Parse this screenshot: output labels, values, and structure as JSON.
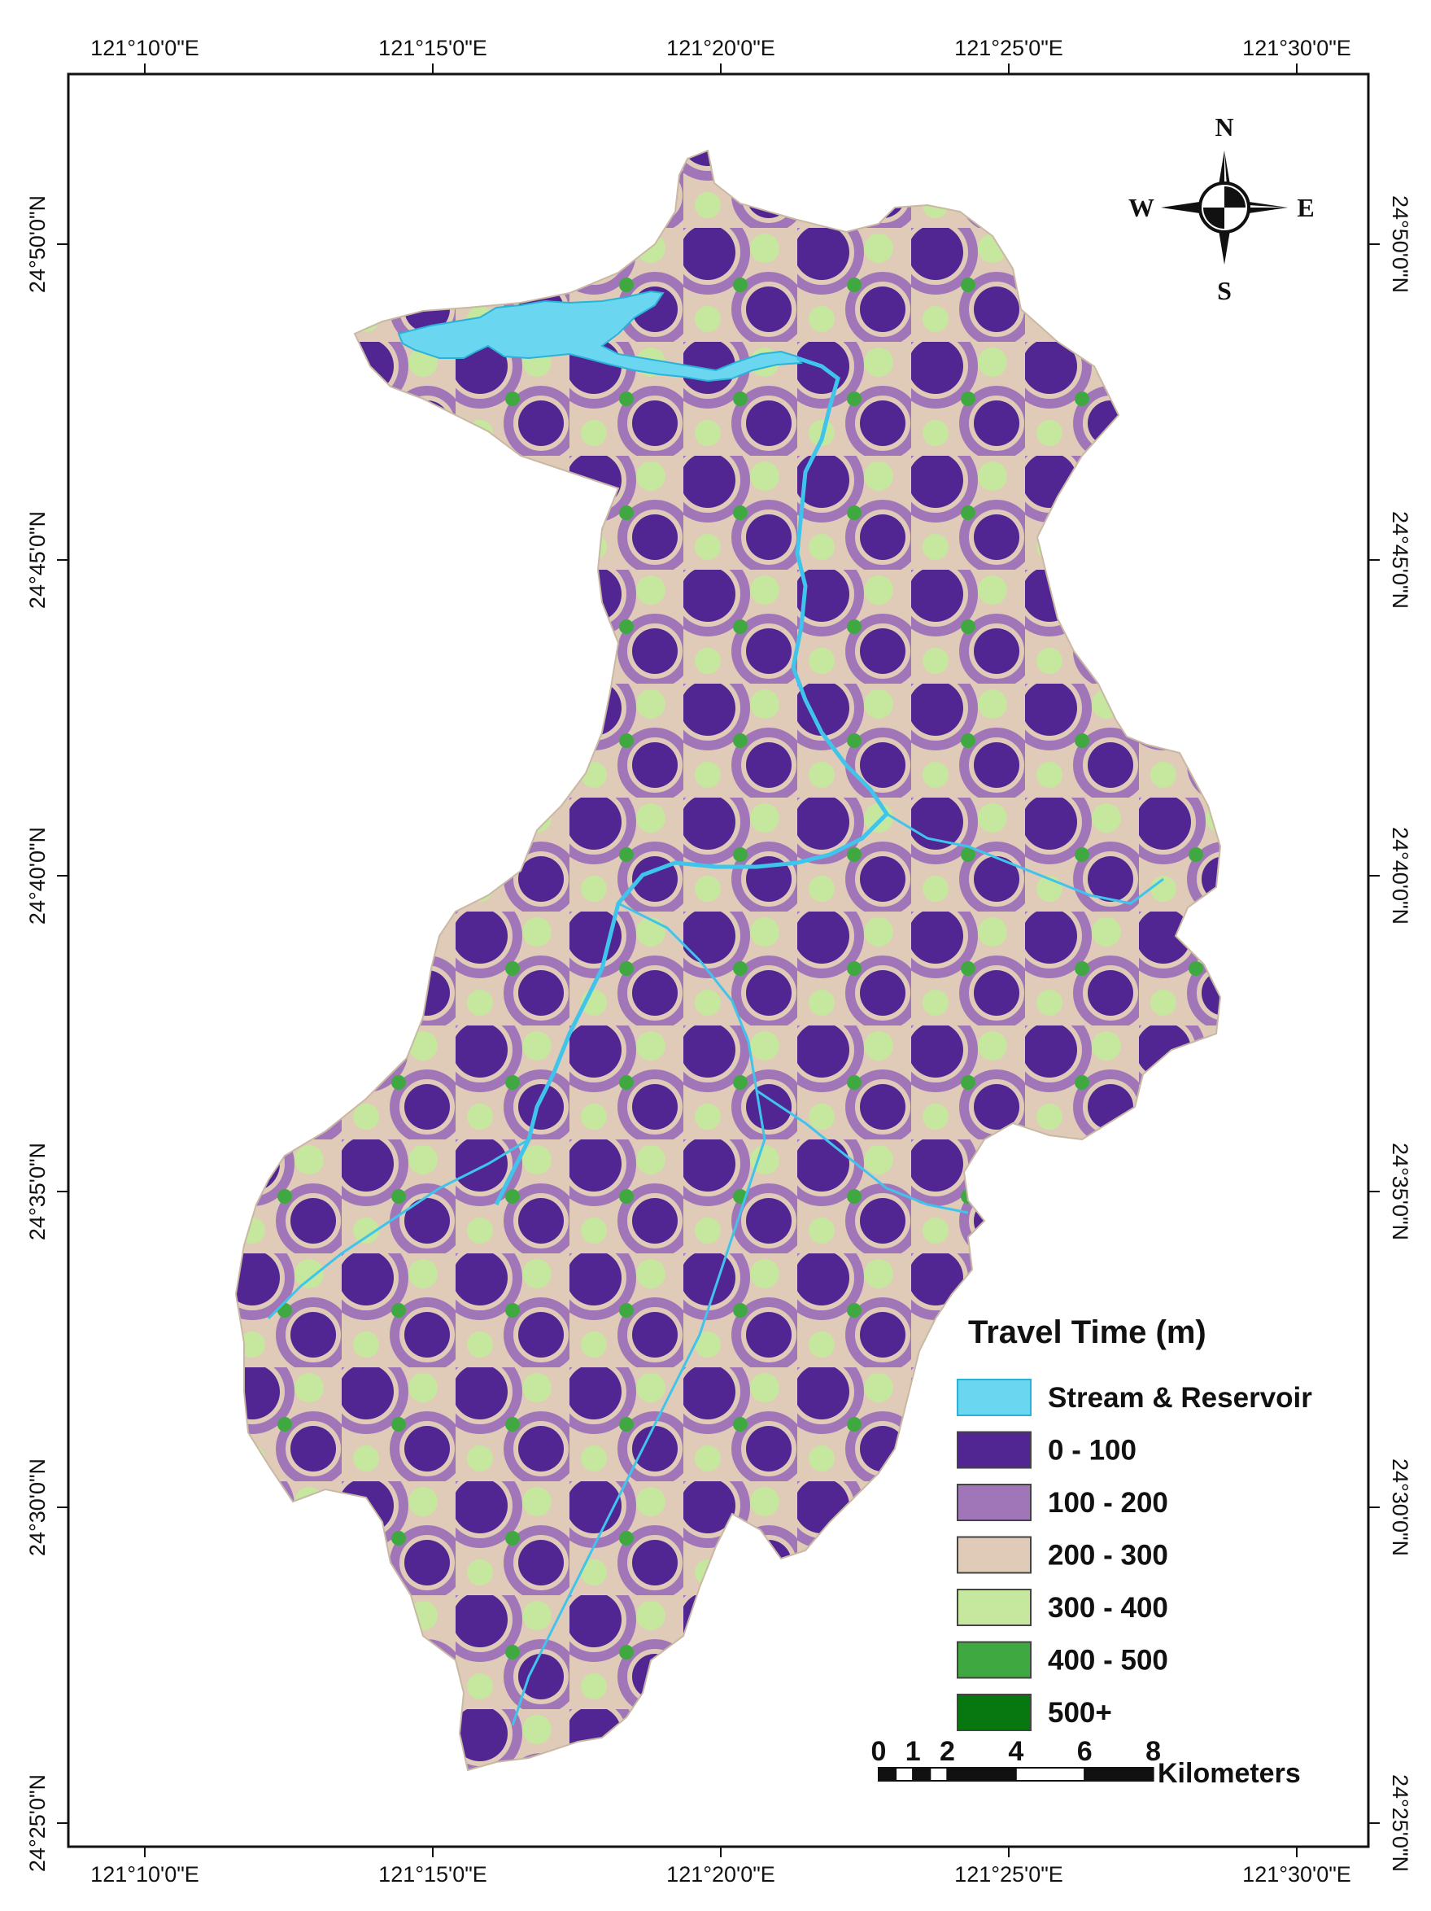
{
  "map": {
    "lon_ticks": [
      "121°10'0\"E",
      "121°15'0\"E",
      "121°20'0\"E",
      "121°25'0\"E",
      "121°30'0\"E"
    ],
    "lat_ticks": [
      "24°50'0\"N",
      "24°45'0\"N",
      "24°40'0\"N",
      "24°35'0\"N",
      "24°30'0\"N",
      "24°25'0\"N"
    ]
  },
  "compass": {
    "n": "N",
    "s": "S",
    "e": "E",
    "w": "W"
  },
  "legend": {
    "title": "Travel Time (m)",
    "items": [
      {
        "label": "Stream & Reservoir",
        "color": "#6ad6f0"
      },
      {
        "label": "0 - 100",
        "color": "#512592"
      },
      {
        "label": "100 - 200",
        "color": "#a176b8"
      },
      {
        "label": "200 - 300",
        "color": "#dfcbb8"
      },
      {
        "label": "300 - 400",
        "color": "#c6e79e"
      },
      {
        "label": "400 - 500",
        "color": "#3fa840"
      },
      {
        "label": "500+",
        "color": "#07770f"
      }
    ]
  },
  "scale_bar": {
    "ticks": [
      "0",
      "1",
      "2",
      "4",
      "6",
      "8"
    ],
    "unit": "Kilometers"
  }
}
